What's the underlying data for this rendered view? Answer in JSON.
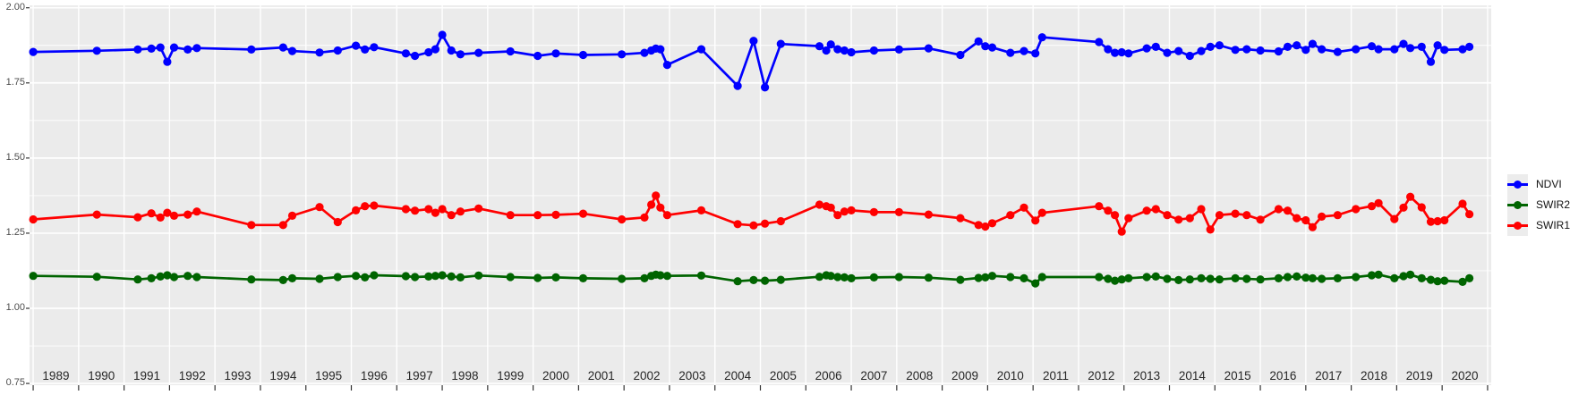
{
  "colors": {
    "background": "#FFFFFF",
    "panel": "#EBEBEB",
    "grid": "#FFFFFF",
    "axis_text": "#4D4D4D",
    "x_axis_text": "#262626",
    "tick": "#333333",
    "legend_key_bg": "#ECECEC"
  },
  "chart_data": {
    "type": "line",
    "title": "",
    "xlabel": "",
    "ylabel": "",
    "legend_position": "right",
    "grid": "white major and minor gridlines on gray panel",
    "ylim": [
      0.75,
      2.0
    ],
    "xlim": [
      1988.4,
      2020.6
    ],
    "y_tick_labels": [
      "2.00",
      "1.75",
      "1.50",
      "1.25",
      "1.00",
      "0.75"
    ],
    "y_tick_values": [
      2.0,
      1.75,
      1.5,
      1.25,
      1.0,
      0.75
    ],
    "x_tick_labels": [
      "1989",
      "1990",
      "1991",
      "1992",
      "1993",
      "1994",
      "1995",
      "1996",
      "1997",
      "1998",
      "1999",
      "2000",
      "2001",
      "2002",
      "2003",
      "2004",
      "2005",
      "2006",
      "2007",
      "2008",
      "2009",
      "2010",
      "2011",
      "2012",
      "2013",
      "2014",
      "2015",
      "2016",
      "2017",
      "2018",
      "2019",
      "2020"
    ],
    "x": [
      1988.5,
      1989.9,
      1990.8,
      1991.1,
      1991.3,
      1991.45,
      1991.6,
      1991.9,
      1992.1,
      1993.3,
      1994.0,
      1994.2,
      1994.8,
      1995.2,
      1995.6,
      1995.8,
      1996.0,
      1996.7,
      1996.9,
      1997.2,
      1997.35,
      1997.5,
      1997.7,
      1997.9,
      1998.3,
      1999.0,
      1999.6,
      2000.0,
      2000.6,
      2001.45,
      2001.95,
      2002.1,
      2002.2,
      2002.3,
      2002.45,
      2003.2,
      2004.0,
      2004.35,
      2004.6,
      2004.95,
      2005.8,
      2005.95,
      2006.05,
      2006.2,
      2006.35,
      2006.5,
      2007.0,
      2007.55,
      2008.2,
      2008.9,
      2009.3,
      2009.45,
      2009.6,
      2010.0,
      2010.3,
      2010.55,
      2010.7,
      2011.95,
      2012.15,
      2012.3,
      2012.45,
      2012.6,
      2013.0,
      2013.2,
      2013.45,
      2013.7,
      2013.95,
      2014.2,
      2014.4,
      2014.6,
      2014.95,
      2015.2,
      2015.5,
      2015.9,
      2016.1,
      2016.3,
      2016.5,
      2016.65,
      2016.85,
      2017.2,
      2017.6,
      2017.95,
      2018.1,
      2018.45,
      2018.65,
      2018.8,
      2019.05,
      2019.25,
      2019.4,
      2019.55,
      2019.95,
      2020.1
    ],
    "series": [
      {
        "name": "NDVI",
        "color": "#0000FF",
        "values": [
          1.853,
          1.857,
          1.861,
          1.864,
          1.868,
          1.82,
          1.868,
          1.861,
          1.866,
          1.861,
          1.868,
          1.856,
          1.851,
          1.858,
          1.874,
          1.861,
          1.869,
          1.848,
          1.84,
          1.852,
          1.862,
          1.91,
          1.858,
          1.845,
          1.85,
          1.855,
          1.84,
          1.848,
          1.843,
          1.845,
          1.85,
          1.858,
          1.864,
          1.862,
          1.81,
          1.862,
          1.74,
          1.89,
          1.735,
          1.88,
          1.872,
          1.858,
          1.878,
          1.862,
          1.858,
          1.852,
          1.858,
          1.861,
          1.865,
          1.843,
          1.888,
          1.872,
          1.868,
          1.85,
          1.856,
          1.848,
          1.902,
          1.886,
          1.862,
          1.85,
          1.852,
          1.848,
          1.865,
          1.87,
          1.85,
          1.856,
          1.84,
          1.856,
          1.87,
          1.875,
          1.86,
          1.862,
          1.858,
          1.855,
          1.87,
          1.875,
          1.86,
          1.88,
          1.862,
          1.853,
          1.862,
          1.872,
          1.862,
          1.862,
          1.88,
          1.866,
          1.87,
          1.82,
          1.875,
          1.86,
          1.862,
          1.87
        ]
      },
      {
        "name": "SWIR2",
        "color": "#006400",
        "values": [
          1.108,
          1.105,
          1.096,
          1.1,
          1.106,
          1.11,
          1.104,
          1.108,
          1.104,
          1.096,
          1.094,
          1.1,
          1.098,
          1.104,
          1.108,
          1.103,
          1.11,
          1.107,
          1.104,
          1.106,
          1.108,
          1.11,
          1.106,
          1.103,
          1.109,
          1.104,
          1.101,
          1.103,
          1.1,
          1.098,
          1.1,
          1.108,
          1.112,
          1.11,
          1.108,
          1.109,
          1.09,
          1.094,
          1.092,
          1.095,
          1.105,
          1.11,
          1.108,
          1.104,
          1.103,
          1.1,
          1.103,
          1.104,
          1.102,
          1.095,
          1.101,
          1.103,
          1.108,
          1.104,
          1.1,
          1.083,
          1.104,
          1.104,
          1.098,
          1.092,
          1.096,
          1.1,
          1.104,
          1.106,
          1.098,
          1.094,
          1.096,
          1.1,
          1.098,
          1.096,
          1.1,
          1.098,
          1.096,
          1.1,
          1.104,
          1.106,
          1.102,
          1.1,
          1.098,
          1.1,
          1.104,
          1.11,
          1.112,
          1.1,
          1.107,
          1.112,
          1.1,
          1.095,
          1.09,
          1.092,
          1.088,
          1.1
        ]
      },
      {
        "name": "SWIR1",
        "color": "#FF0000",
        "values": [
          1.296,
          1.312,
          1.303,
          1.316,
          1.302,
          1.318,
          1.308,
          1.312,
          1.322,
          1.277,
          1.277,
          1.308,
          1.337,
          1.287,
          1.326,
          1.34,
          1.342,
          1.33,
          1.325,
          1.33,
          1.318,
          1.33,
          1.31,
          1.322,
          1.332,
          1.31,
          1.31,
          1.311,
          1.315,
          1.296,
          1.302,
          1.345,
          1.375,
          1.335,
          1.31,
          1.326,
          1.28,
          1.276,
          1.282,
          1.29,
          1.345,
          1.34,
          1.335,
          1.31,
          1.322,
          1.326,
          1.32,
          1.32,
          1.312,
          1.3,
          1.277,
          1.272,
          1.283,
          1.31,
          1.335,
          1.292,
          1.318,
          1.34,
          1.325,
          1.31,
          1.255,
          1.3,
          1.325,
          1.33,
          1.31,
          1.295,
          1.3,
          1.33,
          1.262,
          1.31,
          1.315,
          1.31,
          1.295,
          1.33,
          1.325,
          1.3,
          1.293,
          1.27,
          1.305,
          1.31,
          1.33,
          1.34,
          1.35,
          1.297,
          1.335,
          1.371,
          1.336,
          1.288,
          1.29,
          1.293,
          1.348,
          1.313
        ]
      }
    ]
  },
  "legend": {
    "entries": [
      {
        "label": "NDVI",
        "color": "#0000FF"
      },
      {
        "label": "SWIR2",
        "color": "#006400"
      },
      {
        "label": "SWIR1",
        "color": "#FF0000"
      }
    ]
  }
}
